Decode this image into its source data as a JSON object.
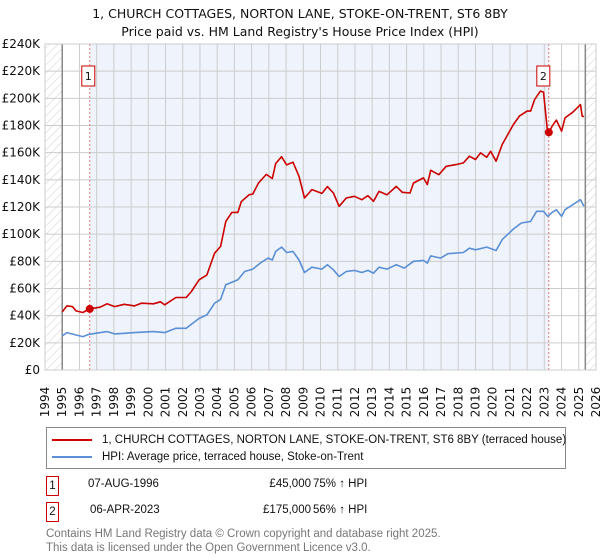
{
  "chart_data": {
    "type": "line",
    "title": "1, CHURCH COTTAGES, NORTON LANE, STOKE-ON-TRENT, ST6 8BY",
    "subtitle": "Price paid vs. HM Land Registry's House Price Index (HPI)",
    "xlim": [
      1994,
      2026
    ],
    "ylim": [
      0,
      240000
    ],
    "grid": true,
    "legend_placement": "bottom",
    "y_ticks": [
      {
        "v": 0,
        "label": "£0"
      },
      {
        "v": 20000,
        "label": "£20K"
      },
      {
        "v": 40000,
        "label": "£40K"
      },
      {
        "v": 60000,
        "label": "£60K"
      },
      {
        "v": 80000,
        "label": "£80K"
      },
      {
        "v": 100000,
        "label": "£100K"
      },
      {
        "v": 120000,
        "label": "£120K"
      },
      {
        "v": 140000,
        "label": "£140K"
      },
      {
        "v": 160000,
        "label": "£160K"
      },
      {
        "v": 180000,
        "label": "£180K"
      },
      {
        "v": 200000,
        "label": "£200K"
      },
      {
        "v": 220000,
        "label": "£220K"
      },
      {
        "v": 240000,
        "label": "£240K"
      }
    ],
    "x_ticks": [
      "1994",
      "1995",
      "1996",
      "1997",
      "1998",
      "1999",
      "2000",
      "2001",
      "2002",
      "2003",
      "2004",
      "2005",
      "2006",
      "2007",
      "2008",
      "2009",
      "2010",
      "2011",
      "2012",
      "2013",
      "2014",
      "2015",
      "2016",
      "2017",
      "2018",
      "2019",
      "2020",
      "2021",
      "2022",
      "2023",
      "2024",
      "2025",
      "2026"
    ],
    "data_start": 1995,
    "data_end": 2025.38,
    "series": [
      {
        "name": "1, CHURCH COTTAGES, NORTON LANE, STOKE-ON-TRENT, ST6 8BY (terraced house)",
        "color": "#cc0000",
        "points": [
          [
            1995.0,
            42.8
          ],
          [
            1995.27,
            47.2
          ],
          [
            1995.6,
            46.7
          ],
          [
            1995.8,
            43.5
          ],
          [
            1996.2,
            42.3
          ],
          [
            1996.56,
            45
          ],
          [
            1997.2,
            46.2
          ],
          [
            1997.6,
            48.7
          ],
          [
            1998.05,
            46.7
          ],
          [
            1998.6,
            48.4
          ],
          [
            1999.2,
            47.2
          ],
          [
            1999.6,
            49.2
          ],
          [
            2000.3,
            48.7
          ],
          [
            2000.7,
            50.2
          ],
          [
            2000.95,
            48
          ],
          [
            2001.6,
            53.4
          ],
          [
            2002.2,
            53.4
          ],
          [
            2002.5,
            57.8
          ],
          [
            2002.95,
            66.4
          ],
          [
            2003.4,
            70
          ],
          [
            2003.85,
            86
          ],
          [
            2004.2,
            91
          ],
          [
            2004.5,
            109.4
          ],
          [
            2004.85,
            116
          ],
          [
            2005.2,
            116
          ],
          [
            2005.4,
            124
          ],
          [
            2005.85,
            129
          ],
          [
            2006.07,
            129.6
          ],
          [
            2006.4,
            137.7
          ],
          [
            2006.85,
            144
          ],
          [
            2007.2,
            141
          ],
          [
            2007.4,
            152
          ],
          [
            2007.74,
            157
          ],
          [
            2008.03,
            151
          ],
          [
            2008.4,
            153
          ],
          [
            2008.75,
            142.6
          ],
          [
            2009.07,
            126.6
          ],
          [
            2009.5,
            132.8
          ],
          [
            2010.08,
            130
          ],
          [
            2010.4,
            135
          ],
          [
            2010.75,
            130.3
          ],
          [
            2011.08,
            120.5
          ],
          [
            2011.5,
            126.6
          ],
          [
            2011.97,
            127.9
          ],
          [
            2012.4,
            125.4
          ],
          [
            2012.75,
            128.3
          ],
          [
            2013.08,
            124.2
          ],
          [
            2013.4,
            131.5
          ],
          [
            2013.86,
            129
          ],
          [
            2014.4,
            135.2
          ],
          [
            2014.75,
            130.8
          ],
          [
            2015.2,
            130.3
          ],
          [
            2015.4,
            137.7
          ],
          [
            2015.98,
            141.4
          ],
          [
            2016.2,
            136.5
          ],
          [
            2016.4,
            147
          ],
          [
            2016.87,
            143.8
          ],
          [
            2017.3,
            150
          ],
          [
            2017.87,
            151.2
          ],
          [
            2018.3,
            152.5
          ],
          [
            2018.65,
            157.4
          ],
          [
            2019.0,
            155
          ],
          [
            2019.3,
            159.8
          ],
          [
            2019.65,
            156.6
          ],
          [
            2019.88,
            161
          ],
          [
            2020.2,
            153.7
          ],
          [
            2020.55,
            166
          ],
          [
            2021.2,
            180.7
          ],
          [
            2021.55,
            186.9
          ],
          [
            2022.0,
            190.6
          ],
          [
            2022.2,
            190.6
          ],
          [
            2022.44,
            199.2
          ],
          [
            2022.77,
            205.3
          ],
          [
            2022.95,
            204.6
          ],
          [
            2023.17,
            177
          ],
          [
            2023.26,
            175
          ],
          [
            2023.45,
            179.5
          ],
          [
            2023.7,
            184
          ],
          [
            2024.0,
            175.8
          ],
          [
            2024.2,
            185.6
          ],
          [
            2024.65,
            189.8
          ],
          [
            2025.1,
            195.4
          ],
          [
            2025.2,
            186.9
          ],
          [
            2025.3,
            186.4
          ]
        ]
      },
      {
        "name": "HPI: Average price, terraced house, Stoke-on-Trent",
        "color": "#5b8fd6",
        "points": [
          [
            1995.0,
            25
          ],
          [
            1995.27,
            27.5
          ],
          [
            1995.8,
            25.8
          ],
          [
            1996.2,
            24.6
          ],
          [
            1996.56,
            26.3
          ],
          [
            1997.6,
            28.3
          ],
          [
            1998.05,
            26.6
          ],
          [
            1999.2,
            27.5
          ],
          [
            2000.3,
            28.3
          ],
          [
            2000.95,
            27.5
          ],
          [
            2001.6,
            30.7
          ],
          [
            2002.2,
            30.7
          ],
          [
            2002.95,
            38
          ],
          [
            2003.4,
            40.6
          ],
          [
            2003.85,
            49.2
          ],
          [
            2004.2,
            52
          ],
          [
            2004.5,
            62.7
          ],
          [
            2005.2,
            66.4
          ],
          [
            2005.6,
            72.5
          ],
          [
            2006.07,
            74.3
          ],
          [
            2006.5,
            78.7
          ],
          [
            2006.96,
            82.4
          ],
          [
            2007.2,
            81
          ],
          [
            2007.4,
            87.3
          ],
          [
            2007.74,
            90.5
          ],
          [
            2008.03,
            86.5
          ],
          [
            2008.4,
            87.3
          ],
          [
            2008.75,
            81
          ],
          [
            2009.07,
            71.8
          ],
          [
            2009.5,
            75.7
          ],
          [
            2010.08,
            74.3
          ],
          [
            2010.4,
            77.5
          ],
          [
            2010.75,
            73.8
          ],
          [
            2011.08,
            68.8
          ],
          [
            2011.5,
            72.5
          ],
          [
            2011.97,
            73.3
          ],
          [
            2012.4,
            71.8
          ],
          [
            2012.75,
            73.3
          ],
          [
            2013.08,
            71.3
          ],
          [
            2013.4,
            75.7
          ],
          [
            2013.86,
            74.3
          ],
          [
            2014.4,
            77.5
          ],
          [
            2014.86,
            75
          ],
          [
            2015.4,
            80
          ],
          [
            2015.98,
            80.7
          ],
          [
            2016.2,
            78.7
          ],
          [
            2016.4,
            84
          ],
          [
            2016.98,
            82.4
          ],
          [
            2017.4,
            85.6
          ],
          [
            2018.3,
            86.5
          ],
          [
            2018.65,
            89.7
          ],
          [
            2019.0,
            88.5
          ],
          [
            2019.65,
            90.5
          ],
          [
            2020.2,
            88
          ],
          [
            2020.55,
            96
          ],
          [
            2021.2,
            103.8
          ],
          [
            2021.66,
            108.2
          ],
          [
            2022.2,
            109.4
          ],
          [
            2022.55,
            116.8
          ],
          [
            2022.95,
            116.8
          ],
          [
            2023.2,
            113.1
          ],
          [
            2023.45,
            116
          ],
          [
            2023.7,
            118
          ],
          [
            2024.0,
            113.1
          ],
          [
            2024.2,
            118
          ],
          [
            2024.65,
            121.7
          ],
          [
            2025.1,
            125.4
          ],
          [
            2025.3,
            120.5
          ]
        ]
      }
    ],
    "y_units_note": "points y values in £ thousands",
    "sales": [
      {
        "num": "1",
        "year": 1996.6,
        "value": 45,
        "date": "07-AUG-1996",
        "price": "£45,000",
        "hpi": "75% ↑ HPI"
      },
      {
        "num": "2",
        "year": 2023.26,
        "value": 175,
        "date": "06-APR-2023",
        "price": "£175,000",
        "hpi": "56% ↑ HPI"
      }
    ],
    "colors": {
      "shade": "#eef3fc",
      "grid": "#cccccc",
      "marker_box": "#cc0000",
      "sale_line": "#e05555"
    }
  },
  "footer": {
    "line1": "Contains HM Land Registry data © Crown copyright and database right 2025.",
    "line2": "This data is licensed under the Open Government Licence v3.0."
  }
}
